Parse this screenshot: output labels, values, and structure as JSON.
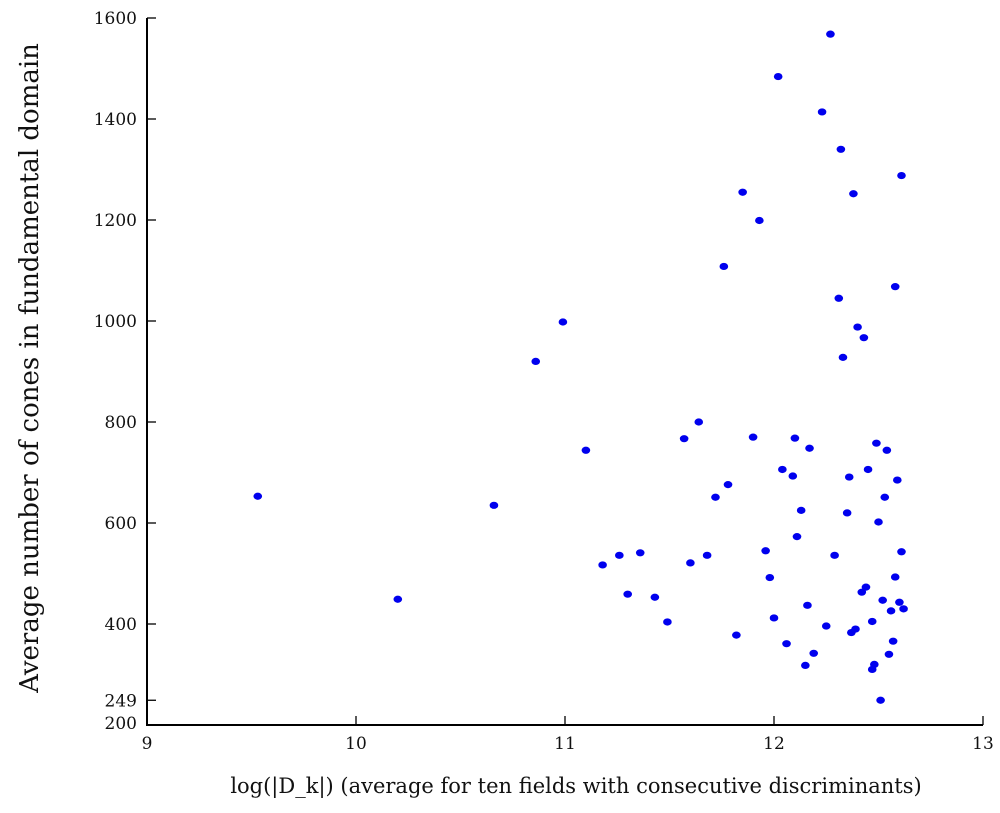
{
  "chart_data": {
    "type": "scatter",
    "title": "",
    "xlabel": "log(|D_k|)   (average for ten fields with consecutive discriminants)",
    "ylabel": "Average number of cones in fundamental domain",
    "xlim": [
      9,
      13
    ],
    "ylim": [
      200,
      1600
    ],
    "x_ticks": [
      "9",
      "10",
      "11",
      "12",
      "13"
    ],
    "y_ticks": [
      "1600",
      "1400",
      "1200",
      "1000",
      "800",
      "600",
      "400",
      "249",
      "200"
    ],
    "y_tick_values": [
      1600,
      1400,
      1200,
      1000,
      800,
      600,
      400,
      249,
      200
    ],
    "grid": false,
    "marker_color": "#0000ee",
    "series": [
      {
        "points": [
          [
            9.53,
            653
          ],
          [
            10.2,
            449
          ],
          [
            10.66,
            635
          ],
          [
            10.86,
            920
          ],
          [
            10.99,
            998
          ],
          [
            11.1,
            744
          ],
          [
            11.18,
            517
          ],
          [
            11.26,
            536
          ],
          [
            11.3,
            459
          ],
          [
            11.36,
            541
          ],
          [
            11.43,
            453
          ],
          [
            11.49,
            404
          ],
          [
            11.57,
            767
          ],
          [
            11.6,
            521
          ],
          [
            11.64,
            800
          ],
          [
            11.68,
            536
          ],
          [
            11.72,
            651
          ],
          [
            11.76,
            1108
          ],
          [
            11.78,
            676
          ],
          [
            11.82,
            378
          ],
          [
            11.85,
            1255
          ],
          [
            11.9,
            770
          ],
          [
            11.93,
            1199
          ],
          [
            11.96,
            545
          ],
          [
            11.98,
            492
          ],
          [
            12.0,
            412
          ],
          [
            12.02,
            1484
          ],
          [
            12.04,
            706
          ],
          [
            12.06,
            361
          ],
          [
            12.09,
            693
          ],
          [
            12.1,
            768
          ],
          [
            12.11,
            573
          ],
          [
            12.13,
            625
          ],
          [
            12.15,
            318
          ],
          [
            12.16,
            437
          ],
          [
            12.17,
            748
          ],
          [
            12.19,
            342
          ],
          [
            12.23,
            1414
          ],
          [
            12.25,
            396
          ],
          [
            12.27,
            1568
          ],
          [
            12.29,
            536
          ],
          [
            12.31,
            1045
          ],
          [
            12.32,
            1340
          ],
          [
            12.33,
            928
          ],
          [
            12.35,
            620
          ],
          [
            12.36,
            691
          ],
          [
            12.37,
            383
          ],
          [
            12.38,
            1252
          ],
          [
            12.39,
            390
          ],
          [
            12.4,
            988
          ],
          [
            12.42,
            463
          ],
          [
            12.43,
            967
          ],
          [
            12.44,
            473
          ],
          [
            12.45,
            706
          ],
          [
            12.47,
            405
          ],
          [
            12.48,
            320
          ],
          [
            12.49,
            758
          ],
          [
            12.5,
            602
          ],
          [
            12.51,
            249
          ],
          [
            12.52,
            447
          ],
          [
            12.53,
            651
          ],
          [
            12.54,
            744
          ],
          [
            12.55,
            340
          ],
          [
            12.56,
            426
          ],
          [
            12.57,
            366
          ],
          [
            12.58,
            1068
          ],
          [
            12.58,
            493
          ],
          [
            12.59,
            685
          ],
          [
            12.6,
            443
          ],
          [
            12.61,
            1288
          ],
          [
            12.61,
            543
          ],
          [
            12.62,
            430
          ],
          [
            12.47,
            310
          ]
        ]
      }
    ]
  }
}
